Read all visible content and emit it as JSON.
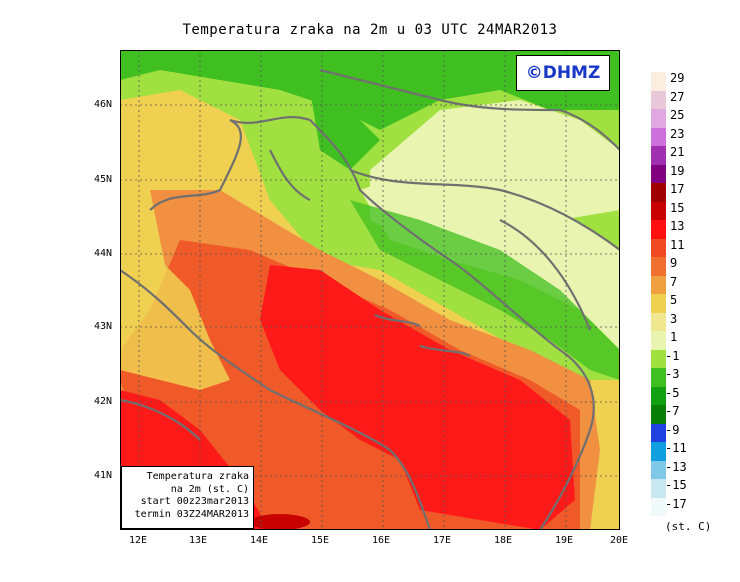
{
  "title": "Temperatura zraka na 2m u 03 UTC 24MAR2013",
  "watermark": "©DHMZ",
  "info_box": {
    "line1": "Temperatura zraka",
    "line2": "na 2m (st. C)",
    "line3": "start 00z23mar2013",
    "line4": "termin 03Z24MAR2013"
  },
  "longitude_labels": [
    "12E",
    "13E",
    "14E",
    "15E",
    "16E",
    "17E",
    "18E",
    "19E",
    "20E"
  ],
  "latitude_labels": [
    "46N",
    "45N",
    "44N",
    "43N",
    "42N",
    "41N"
  ],
  "legend": {
    "unit": "(st. C)",
    "labels": [
      "29",
      "27",
      "25",
      "23",
      "21",
      "19",
      "17",
      "15",
      "13",
      "11",
      "9",
      "7",
      "5",
      "3",
      "1",
      "-1",
      "-3",
      "-5",
      "-7",
      "-9",
      "-11",
      "-13",
      "-15",
      "-17"
    ],
    "colors": [
      "#fbeee0",
      "#e8c8d8",
      "#e0a8e0",
      "#cc70dc",
      "#a030b0",
      "#800080",
      "#a00000",
      "#c80000",
      "#ff1010",
      "#f04820",
      "#f07030",
      "#f0a040",
      "#f0d050",
      "#f0e890",
      "#e8f4b0",
      "#a0e040",
      "#40c020",
      "#10a010",
      "#088008",
      "#2040e0",
      "#10a0e0",
      "#80c8e8",
      "#c8e8f0",
      "#f0fafa"
    ]
  },
  "map_regions": {
    "sea_warm": "#ff1a1a",
    "sea_mid": "#f05a28",
    "coast": "#f09040",
    "land_mild": "#f0d050",
    "land_cool": "#e8f4b0",
    "land_cold": "#a0e040",
    "mountain": "#40c020",
    "border_color": "#707070"
  }
}
